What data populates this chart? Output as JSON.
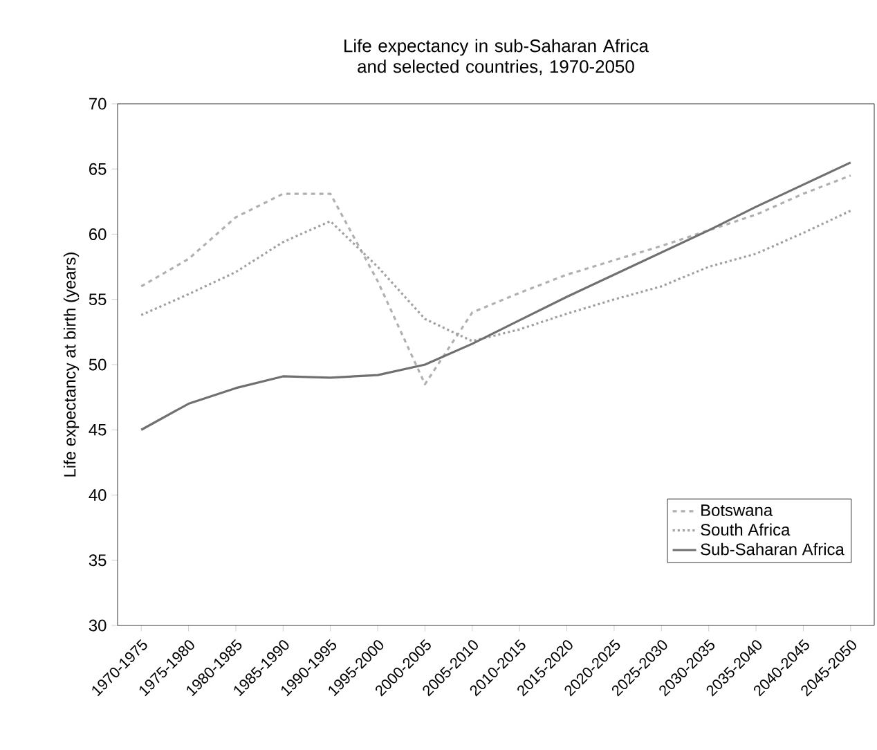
{
  "chart_data": {
    "type": "line",
    "title": "Life expectancy in sub-Saharan Africa and selected countries, 1970-2050",
    "ylabel": "Life expectancy at birth (years)",
    "categories": [
      "1970-1975",
      "1975-1980",
      "1980-1985",
      "1985-1990",
      "1990-1995",
      "1995-2000",
      "2000-2005",
      "2005-2010",
      "2010-2015",
      "2015-2020",
      "2020-2025",
      "2025-2030",
      "2030-2035",
      "2035-2040",
      "2040-2045",
      "2045-2050"
    ],
    "series": [
      {
        "name": "Botswana",
        "color": "#b0b0b0",
        "line_style": "dashed",
        "values": [
          56,
          58.1,
          61.3,
          63.1,
          63.1,
          56.4,
          48.5,
          54,
          55.5,
          56.9,
          58,
          59.1,
          60.3,
          61.5,
          63.1,
          64.5
        ]
      },
      {
        "name": "South Africa",
        "color": "#a0a0a0",
        "line_style": "dotted",
        "values": [
          53.8,
          55.4,
          57.1,
          59.4,
          61,
          57.5,
          53.5,
          51.8,
          52.7,
          53.9,
          55,
          56,
          57.5,
          58.5,
          60.1,
          61.8
        ]
      },
      {
        "name": "Sub-Saharan Africa",
        "color": "#707070",
        "line_style": "solid",
        "values": [
          45,
          47,
          48.2,
          49.1,
          49,
          49.2,
          50,
          51.6,
          53.4,
          55.2,
          56.9,
          58.6,
          60.3,
          62.1,
          63.8,
          65.5
        ]
      }
    ],
    "ylim": [
      30,
      70
    ],
    "yticks": [
      30,
      35,
      40,
      45,
      50,
      55,
      60,
      65,
      70
    ],
    "grid": false,
    "legend": "bottom right"
  }
}
